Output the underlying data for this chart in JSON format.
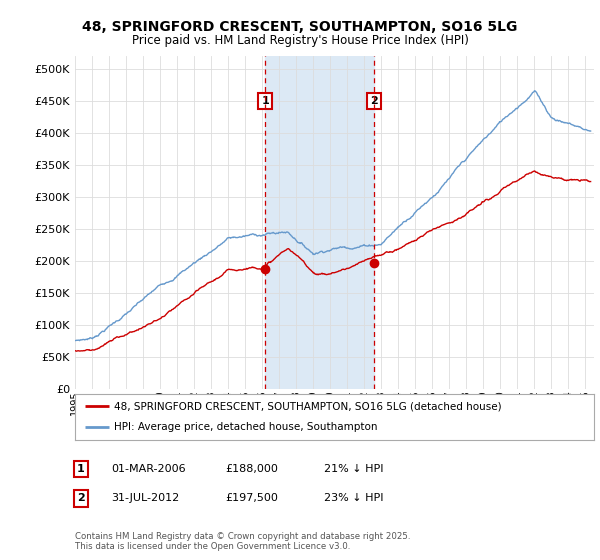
{
  "title": "48, SPRINGFORD CRESCENT, SOUTHAMPTON, SO16 5LG",
  "subtitle": "Price paid vs. HM Land Registry's House Price Index (HPI)",
  "ytick_values": [
    0,
    50000,
    100000,
    150000,
    200000,
    250000,
    300000,
    350000,
    400000,
    450000,
    500000
  ],
  "ylim": [
    0,
    520000
  ],
  "xlim_start": 1995.0,
  "xlim_end": 2025.5,
  "hpi_color": "#6699CC",
  "price_color": "#CC0000",
  "shade_color": "#DCE9F5",
  "vline_color": "#CC0000",
  "marker1_x": 2006.17,
  "marker1_y": 188000,
  "marker2_x": 2012.58,
  "marker2_y": 197500,
  "legend_label_price": "48, SPRINGFORD CRESCENT, SOUTHAMPTON, SO16 5LG (detached house)",
  "legend_label_hpi": "HPI: Average price, detached house, Southampton",
  "footnote": "Contains HM Land Registry data © Crown copyright and database right 2025.\nThis data is licensed under the Open Government Licence v3.0.",
  "table_rows": [
    {
      "num": "1",
      "date": "01-MAR-2006",
      "price": "£188,000",
      "note": "21% ↓ HPI"
    },
    {
      "num": "2",
      "date": "31-JUL-2012",
      "price": "£197,500",
      "note": "23% ↓ HPI"
    }
  ],
  "background_color": "#FFFFFF",
  "grid_color": "#DDDDDD"
}
